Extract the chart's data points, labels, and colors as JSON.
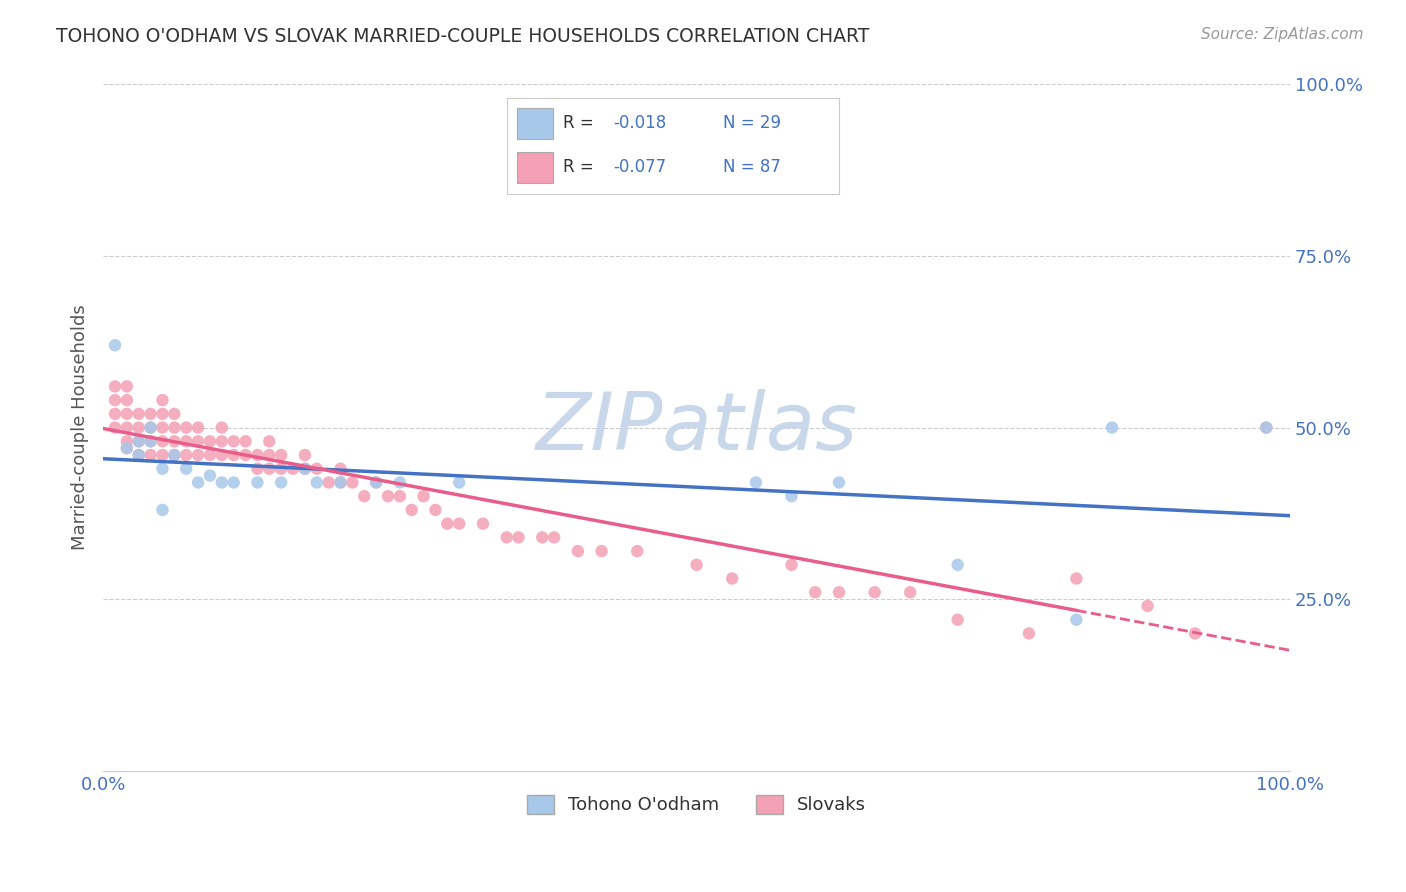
{
  "title": "TOHONO O'ODHAM VS SLOVAK MARRIED-COUPLE HOUSEHOLDS CORRELATION CHART",
  "source": "Source: ZipAtlas.com",
  "ylabel": "Married-couple Households",
  "r_tohono": -0.018,
  "n_tohono": 29,
  "r_slovak": -0.077,
  "n_slovak": 87,
  "color_tohono": "#a8c8ea",
  "color_slovak": "#f4a0b5",
  "color_tohono_line": "#4472c4",
  "color_slovak_line": "#e85d8a",
  "scatter_tohono_x": [
    0.01,
    0.02,
    0.03,
    0.03,
    0.04,
    0.04,
    0.05,
    0.05,
    0.06,
    0.07,
    0.08,
    0.09,
    0.1,
    0.11,
    0.13,
    0.15,
    0.17,
    0.18,
    0.2,
    0.23,
    0.25,
    0.3,
    0.55,
    0.58,
    0.62,
    0.72,
    0.82,
    0.85,
    0.98
  ],
  "scatter_tohono_y": [
    0.62,
    0.47,
    0.48,
    0.46,
    0.5,
    0.48,
    0.44,
    0.38,
    0.46,
    0.44,
    0.42,
    0.43,
    0.42,
    0.42,
    0.42,
    0.42,
    0.44,
    0.42,
    0.42,
    0.42,
    0.42,
    0.42,
    0.42,
    0.4,
    0.42,
    0.3,
    0.22,
    0.5,
    0.5
  ],
  "scatter_slovak_x": [
    0.01,
    0.01,
    0.01,
    0.01,
    0.02,
    0.02,
    0.02,
    0.02,
    0.02,
    0.02,
    0.03,
    0.03,
    0.03,
    0.03,
    0.04,
    0.04,
    0.04,
    0.04,
    0.05,
    0.05,
    0.05,
    0.05,
    0.05,
    0.06,
    0.06,
    0.06,
    0.06,
    0.07,
    0.07,
    0.07,
    0.08,
    0.08,
    0.08,
    0.09,
    0.09,
    0.1,
    0.1,
    0.1,
    0.11,
    0.11,
    0.12,
    0.12,
    0.13,
    0.13,
    0.14,
    0.14,
    0.14,
    0.15,
    0.15,
    0.16,
    0.17,
    0.17,
    0.18,
    0.19,
    0.2,
    0.2,
    0.21,
    0.22,
    0.23,
    0.24,
    0.25,
    0.26,
    0.27,
    0.28,
    0.29,
    0.3,
    0.32,
    0.34,
    0.35,
    0.37,
    0.38,
    0.4,
    0.42,
    0.45,
    0.5,
    0.53,
    0.58,
    0.6,
    0.62,
    0.65,
    0.68,
    0.72,
    0.78,
    0.82,
    0.88,
    0.92,
    0.98
  ],
  "scatter_slovak_y": [
    0.5,
    0.52,
    0.54,
    0.56,
    0.5,
    0.52,
    0.54,
    0.56,
    0.47,
    0.48,
    0.5,
    0.52,
    0.48,
    0.46,
    0.52,
    0.5,
    0.48,
    0.46,
    0.54,
    0.52,
    0.5,
    0.48,
    0.46,
    0.52,
    0.5,
    0.48,
    0.46,
    0.5,
    0.48,
    0.46,
    0.5,
    0.48,
    0.46,
    0.48,
    0.46,
    0.5,
    0.48,
    0.46,
    0.48,
    0.46,
    0.48,
    0.46,
    0.46,
    0.44,
    0.48,
    0.46,
    0.44,
    0.46,
    0.44,
    0.44,
    0.46,
    0.44,
    0.44,
    0.42,
    0.44,
    0.42,
    0.42,
    0.4,
    0.42,
    0.4,
    0.4,
    0.38,
    0.4,
    0.38,
    0.36,
    0.36,
    0.36,
    0.34,
    0.34,
    0.34,
    0.34,
    0.32,
    0.32,
    0.32,
    0.3,
    0.28,
    0.3,
    0.26,
    0.26,
    0.26,
    0.26,
    0.22,
    0.2,
    0.28,
    0.24,
    0.2,
    0.5
  ],
  "xlim": [
    0.0,
    1.0
  ],
  "ylim": [
    0.0,
    1.0
  ],
  "background_color": "#ffffff",
  "grid_color": "#cccccc",
  "tick_color": "#4472c4",
  "watermark_text": "ZIPatlas",
  "watermark_color": "#c8d8ea"
}
